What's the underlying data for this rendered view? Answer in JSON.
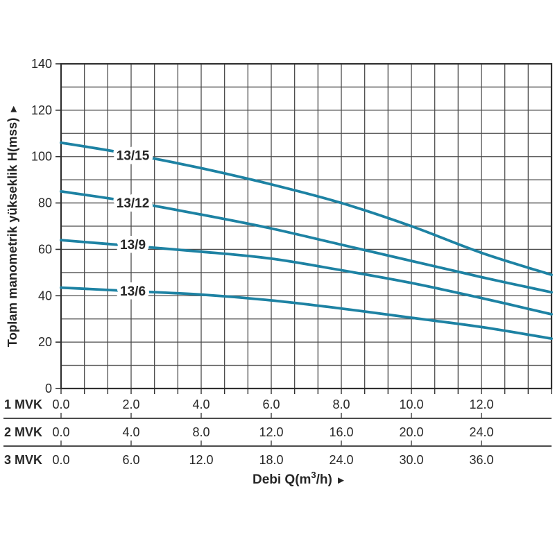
{
  "chart_data": {
    "type": "line",
    "title": "",
    "ylabel": "Toplam manometrik yükseklik H(mss)",
    "ylabel_arrow": "►",
    "xlabel": {
      "prefix": "Debi Q(m",
      "sup": "3",
      "suffix": "/h)",
      "arrow": "►"
    },
    "ylim": [
      0,
      140
    ],
    "y_minor_step": 10,
    "y_label_step": 20,
    "y_tick_labels": [
      "140",
      "120",
      "100",
      "80",
      "60",
      "40",
      "20",
      "0"
    ],
    "xlim_1mvk": [
      0,
      14
    ],
    "x_minor_divisions": 21,
    "grid": "on",
    "x_scales": [
      {
        "name": "1 MVK",
        "ticks": [
          "0.0",
          "2.0",
          "4.0",
          "6.0",
          "8.0",
          "10.0",
          "12.0"
        ]
      },
      {
        "name": "2 MVK",
        "ticks": [
          "0.0",
          "4.0",
          "8.0",
          "12.0",
          "16.0",
          "20.0",
          "24.0"
        ]
      },
      {
        "name": "3 MVK",
        "ticks": [
          "0.0",
          "6.0",
          "12.0",
          "18.0",
          "24.0",
          "30.0",
          "36.0"
        ]
      }
    ],
    "series": [
      {
        "name": "13/15",
        "label_q": 2.05,
        "label_h": 100.5,
        "points": [
          [
            0,
            106
          ],
          [
            2,
            101
          ],
          [
            4,
            95
          ],
          [
            6,
            88
          ],
          [
            8,
            80
          ],
          [
            10,
            70
          ],
          [
            12,
            58.5
          ],
          [
            14,
            49
          ]
        ]
      },
      {
        "name": "13/12",
        "label_q": 2.05,
        "label_h": 80,
        "points": [
          [
            0,
            85
          ],
          [
            2,
            80.5
          ],
          [
            4,
            75
          ],
          [
            6,
            69
          ],
          [
            8,
            62
          ],
          [
            10,
            55
          ],
          [
            12,
            48
          ],
          [
            14,
            41.5
          ]
        ]
      },
      {
        "name": "13/9",
        "label_q": 2.05,
        "label_h": 62,
        "points": [
          [
            0,
            64
          ],
          [
            2,
            61.5
          ],
          [
            4,
            59
          ],
          [
            6,
            56
          ],
          [
            8,
            51
          ],
          [
            10,
            45.5
          ],
          [
            12,
            39
          ],
          [
            14,
            32
          ]
        ]
      },
      {
        "name": "13/6",
        "label_q": 2.05,
        "label_h": 42,
        "points": [
          [
            0,
            43.5
          ],
          [
            2,
            42
          ],
          [
            4,
            40.5
          ],
          [
            6,
            38
          ],
          [
            8,
            34.5
          ],
          [
            10,
            30.5
          ],
          [
            12,
            26.5
          ],
          [
            14,
            21.5
          ]
        ]
      }
    ],
    "colors": {
      "curve": "#1d82a3",
      "grid": "#4b4b4b",
      "axis": "#303030",
      "text": "#262626",
      "background": "#ffffff"
    }
  }
}
